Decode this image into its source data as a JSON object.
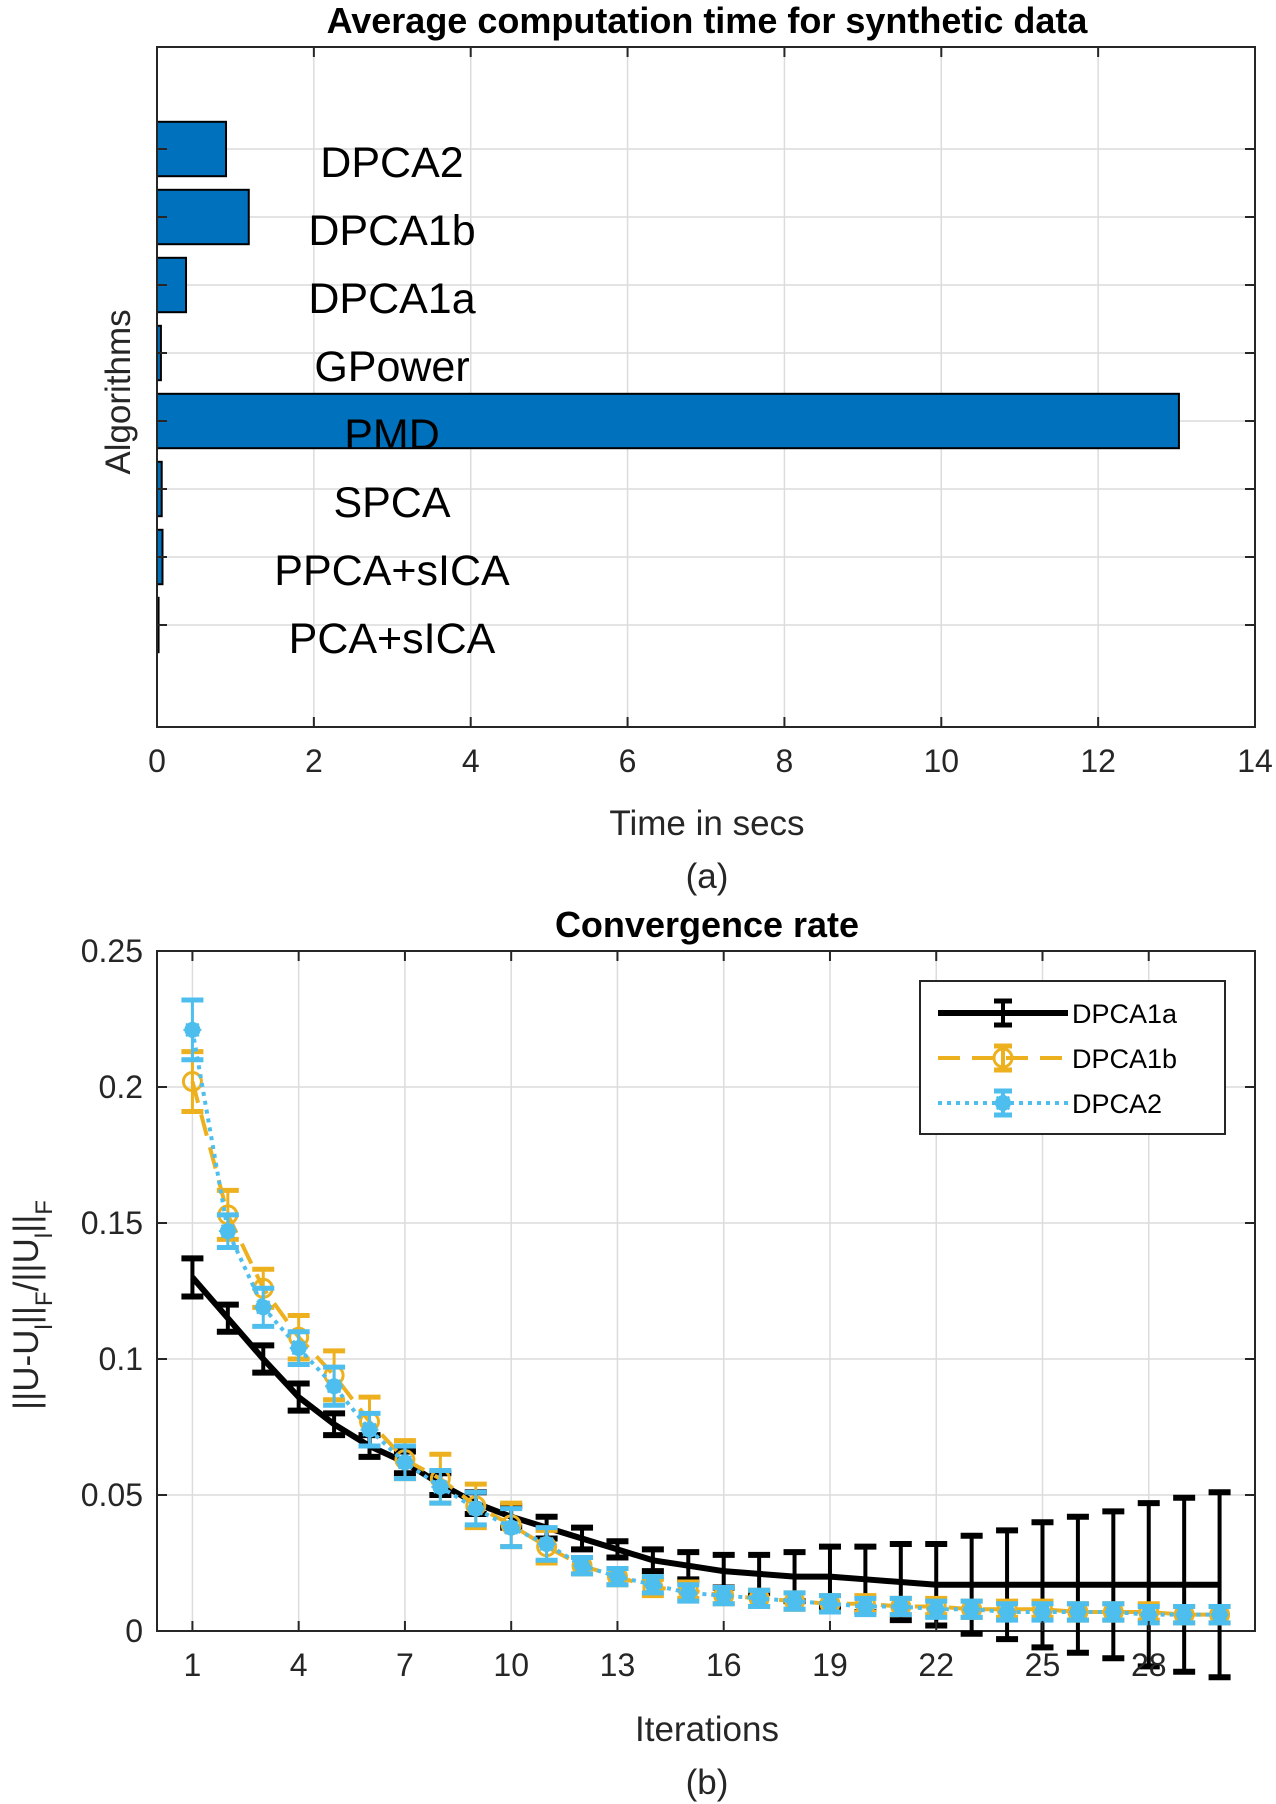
{
  "colors": {
    "bar": "#0072BD",
    "dpca1a": "#000000",
    "dpca1b": "#EDB120",
    "dpca2": "#4DBEEE",
    "grid": "#DCDCDC",
    "axis": "#262626"
  },
  "chart_data": [
    {
      "type": "bar",
      "orientation": "horizontal",
      "title": "Average computation time for synthetic data",
      "xlabel": "Time in secs",
      "ylabel": "Algorithms",
      "panel_label": "(a)",
      "xlim": [
        0,
        14
      ],
      "xticks": [
        "0",
        "2",
        "4",
        "6",
        "8",
        "10",
        "12",
        "14"
      ],
      "categories": [
        "PCA+sICA",
        "PPCA+sICA",
        "SPCA",
        "PMD",
        "GPower",
        "DPCA1a",
        "DPCA1b",
        "DPCA2"
      ],
      "values": [
        0.02,
        0.07,
        0.06,
        13.03,
        0.05,
        0.37,
        1.17,
        0.88
      ],
      "grid": true
    },
    {
      "type": "line",
      "title": "Convergence rate",
      "xlabel": "Iterations",
      "ylabel": "||U-U_l||_F/||U_l||_F",
      "panel_label": "(b)",
      "xlim": [
        0,
        31
      ],
      "ylim": [
        0,
        0.25
      ],
      "xticks": [
        "1",
        "4",
        "7",
        "10",
        "13",
        "16",
        "19",
        "22",
        "25",
        "28"
      ],
      "yticks": [
        "0",
        "0.05",
        "0.1",
        "0.15",
        "0.2",
        "0.25"
      ],
      "grid": true,
      "legend_position": "top-right",
      "x": [
        1,
        2,
        3,
        4,
        5,
        6,
        7,
        8,
        9,
        10,
        11,
        12,
        13,
        14,
        15,
        16,
        17,
        18,
        19,
        20,
        21,
        22,
        23,
        24,
        25,
        26,
        27,
        28,
        29,
        30
      ],
      "series": [
        {
          "name": "DPCA1a",
          "values": [
            0.13,
            0.115,
            0.1,
            0.086,
            0.076,
            0.068,
            0.062,
            0.054,
            0.047,
            0.042,
            0.038,
            0.034,
            0.03,
            0.026,
            0.024,
            0.022,
            0.021,
            0.02,
            0.02,
            0.019,
            0.018,
            0.017,
            0.017,
            0.017,
            0.017,
            0.017,
            0.017,
            0.017,
            0.017,
            0.017
          ],
          "errors": [
            0.007,
            0.005,
            0.005,
            0.005,
            0.004,
            0.004,
            0.004,
            0.004,
            0.004,
            0.004,
            0.004,
            0.004,
            0.003,
            0.004,
            0.005,
            0.006,
            0.007,
            0.009,
            0.011,
            0.012,
            0.014,
            0.015,
            0.018,
            0.02,
            0.023,
            0.025,
            0.027,
            0.03,
            0.032,
            0.034
          ],
          "style": "solid",
          "marker": "none"
        },
        {
          "name": "DPCA1b",
          "values": [
            0.202,
            0.153,
            0.126,
            0.108,
            0.094,
            0.077,
            0.063,
            0.056,
            0.046,
            0.039,
            0.031,
            0.024,
            0.02,
            0.016,
            0.015,
            0.013,
            0.012,
            0.011,
            0.01,
            0.01,
            0.009,
            0.009,
            0.008,
            0.008,
            0.008,
            0.007,
            0.007,
            0.007,
            0.006,
            0.006
          ],
          "errors": [
            0.011,
            0.009,
            0.007,
            0.008,
            0.009,
            0.009,
            0.007,
            0.009,
            0.008,
            0.008,
            0.006,
            0.003,
            0.003,
            0.003,
            0.003,
            0.003,
            0.003,
            0.003,
            0.003,
            0.003,
            0.003,
            0.003,
            0.003,
            0.003,
            0.003,
            0.003,
            0.003,
            0.003,
            0.003,
            0.003
          ],
          "style": "dashed",
          "marker": "circle"
        },
        {
          "name": "DPCA2",
          "values": [
            0.221,
            0.147,
            0.119,
            0.104,
            0.09,
            0.074,
            0.062,
            0.053,
            0.045,
            0.038,
            0.032,
            0.024,
            0.02,
            0.017,
            0.014,
            0.013,
            0.012,
            0.011,
            0.01,
            0.009,
            0.009,
            0.008,
            0.008,
            0.007,
            0.007,
            0.007,
            0.007,
            0.006,
            0.006,
            0.006
          ],
          "errors": [
            0.011,
            0.006,
            0.007,
            0.006,
            0.007,
            0.006,
            0.006,
            0.006,
            0.006,
            0.007,
            0.006,
            0.003,
            0.003,
            0.003,
            0.003,
            0.003,
            0.003,
            0.003,
            0.003,
            0.003,
            0.003,
            0.003,
            0.003,
            0.003,
            0.003,
            0.003,
            0.003,
            0.003,
            0.003,
            0.003
          ],
          "style": "dotted",
          "marker": "star"
        }
      ]
    }
  ]
}
